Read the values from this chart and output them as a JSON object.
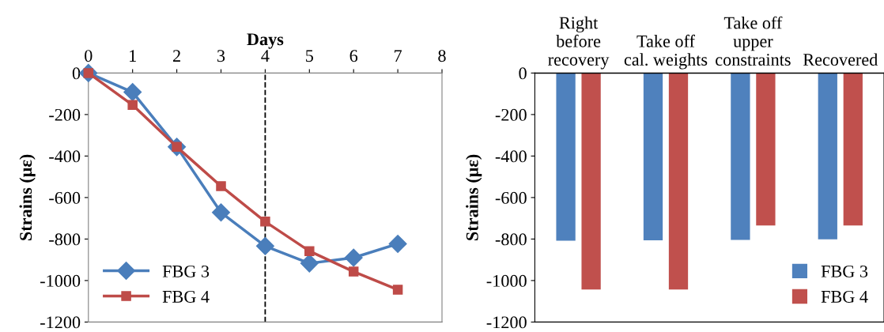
{
  "chart_data": [
    {
      "type": "line",
      "xlabel": "Days",
      "ylabel": "Strains (με)",
      "x": [
        0,
        1,
        2,
        3,
        4,
        5,
        6,
        7
      ],
      "xlim": [
        0,
        8
      ],
      "xticks": [
        0,
        1,
        2,
        3,
        4,
        5,
        6,
        7,
        8
      ],
      "ylim": [
        -1200,
        0
      ],
      "yticks": [
        -1200,
        -1000,
        -800,
        -600,
        -400,
        -200,
        0
      ],
      "grid": false,
      "legend": "bottom left",
      "series": [
        {
          "name": "FBG 3",
          "color": "#4a7ebb",
          "marker": "diamond",
          "values": [
            0,
            -92,
            -356,
            -672,
            -834,
            -917,
            -890,
            -823
          ]
        },
        {
          "name": "FBG 4",
          "color": "#be4b48",
          "marker": "square",
          "values": [
            0,
            -154,
            -356,
            -545,
            -716,
            -858,
            -957,
            -1044
          ]
        }
      ],
      "ref_lines": [
        {
          "axis": "x",
          "value": 4,
          "color": "#000000",
          "line_style": "dashed"
        }
      ]
    },
    {
      "type": "bar",
      "ylabel": "Strains (με)",
      "categories": [
        "Right\nbefore\nrecovery",
        "Take off\ncal. weights",
        "Take off\nupper\nconstraints",
        "Recovered"
      ],
      "ylim": [
        -1200,
        0
      ],
      "yticks": [
        -1200,
        -1000,
        -800,
        -600,
        -400,
        -200,
        0
      ],
      "grid": false,
      "legend": "bottom right",
      "series": [
        {
          "name": "FBG 3",
          "color": "#4f81bd",
          "values": [
            -808,
            -806,
            -804,
            -801
          ]
        },
        {
          "name": "FBG 4",
          "color": "#c0504d",
          "values": [
            -1043,
            -1043,
            -735,
            -735
          ]
        }
      ]
    }
  ]
}
